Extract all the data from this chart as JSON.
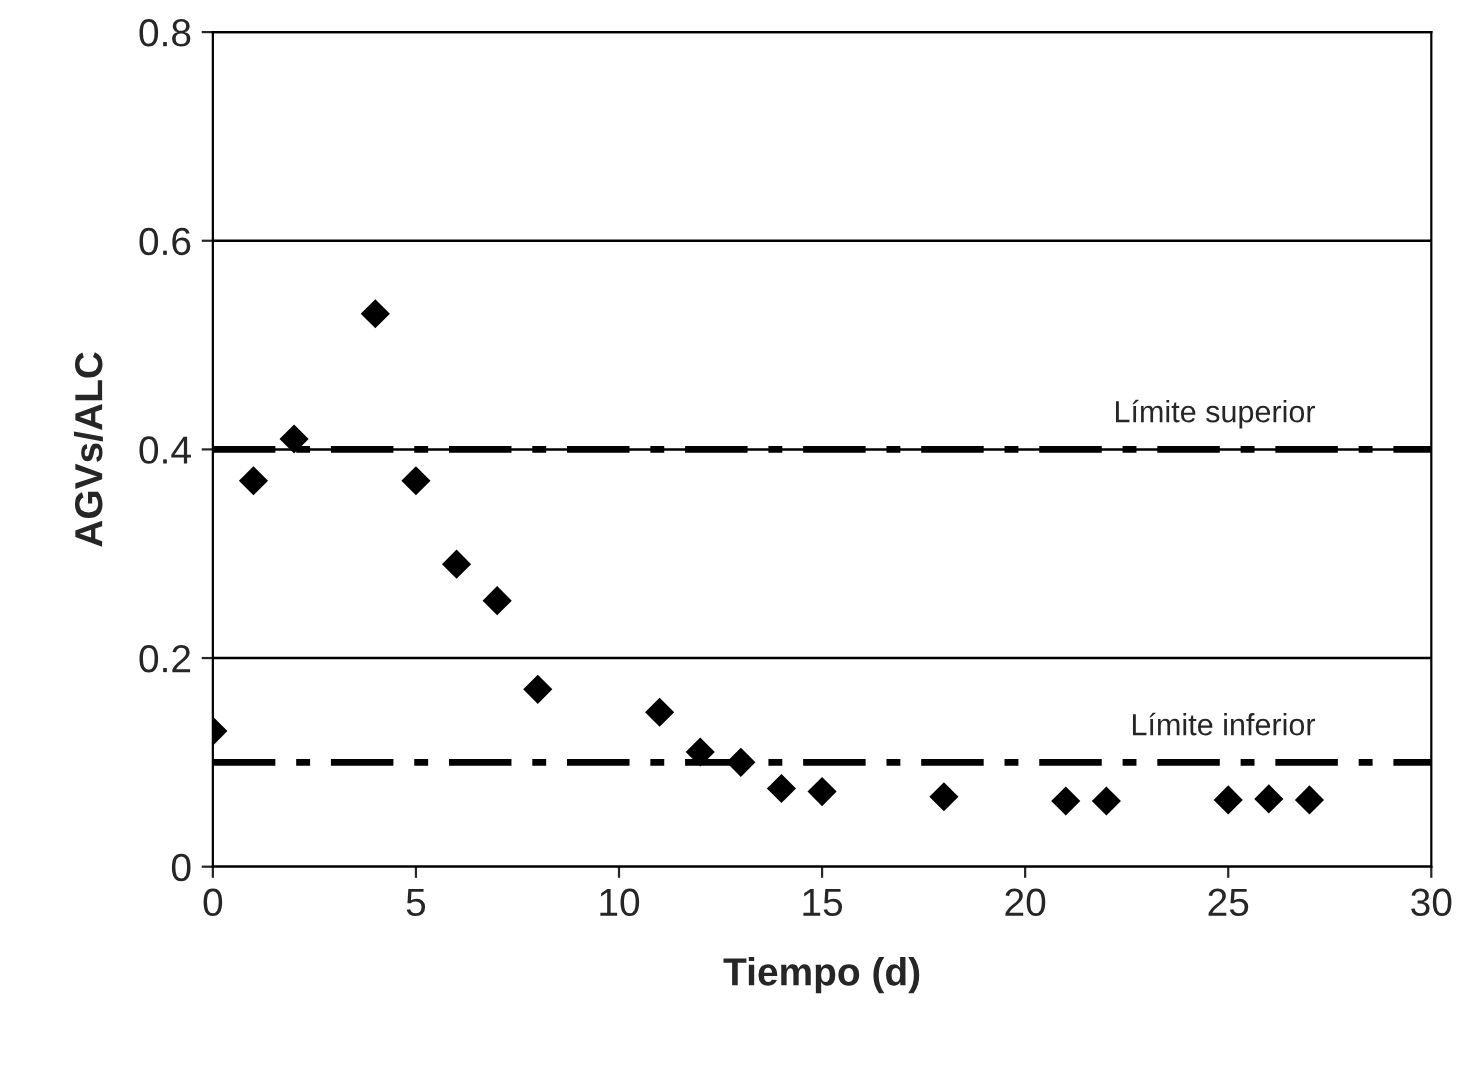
{
  "chart_data": {
    "type": "scatter",
    "xlabel": "Tiempo (d)",
    "ylabel": "AGVs/ALC",
    "x": [
      0,
      1,
      2,
      4,
      5,
      6,
      7,
      8,
      11,
      12,
      13,
      14,
      15,
      18,
      21,
      22,
      25,
      26,
      27
    ],
    "values": [
      0.13,
      0.37,
      0.41,
      0.53,
      0.37,
      0.29,
      0.255,
      0.17,
      0.148,
      0.11,
      0.1,
      0.075,
      0.072,
      0.067,
      0.063,
      0.063,
      0.064,
      0.065,
      0.064
    ],
    "color": "#000000",
    "marker": "diamond",
    "xlim": [
      0,
      30
    ],
    "xticks": [
      0,
      5,
      10,
      15,
      20,
      25,
      30
    ],
    "ylim": [
      0,
      0.8
    ],
    "yticks": [
      0,
      0.2,
      0.4,
      0.6,
      0.8
    ],
    "grid": "y",
    "ref_lines": [
      {
        "axis": "y",
        "value": 0.4,
        "label": "Límite superior",
        "line_style": "dashed",
        "color": "#000000"
      },
      {
        "axis": "y",
        "value": 0.1,
        "label": "Límite inferior",
        "line_style": "dashed",
        "color": "#000000"
      }
    ]
  }
}
